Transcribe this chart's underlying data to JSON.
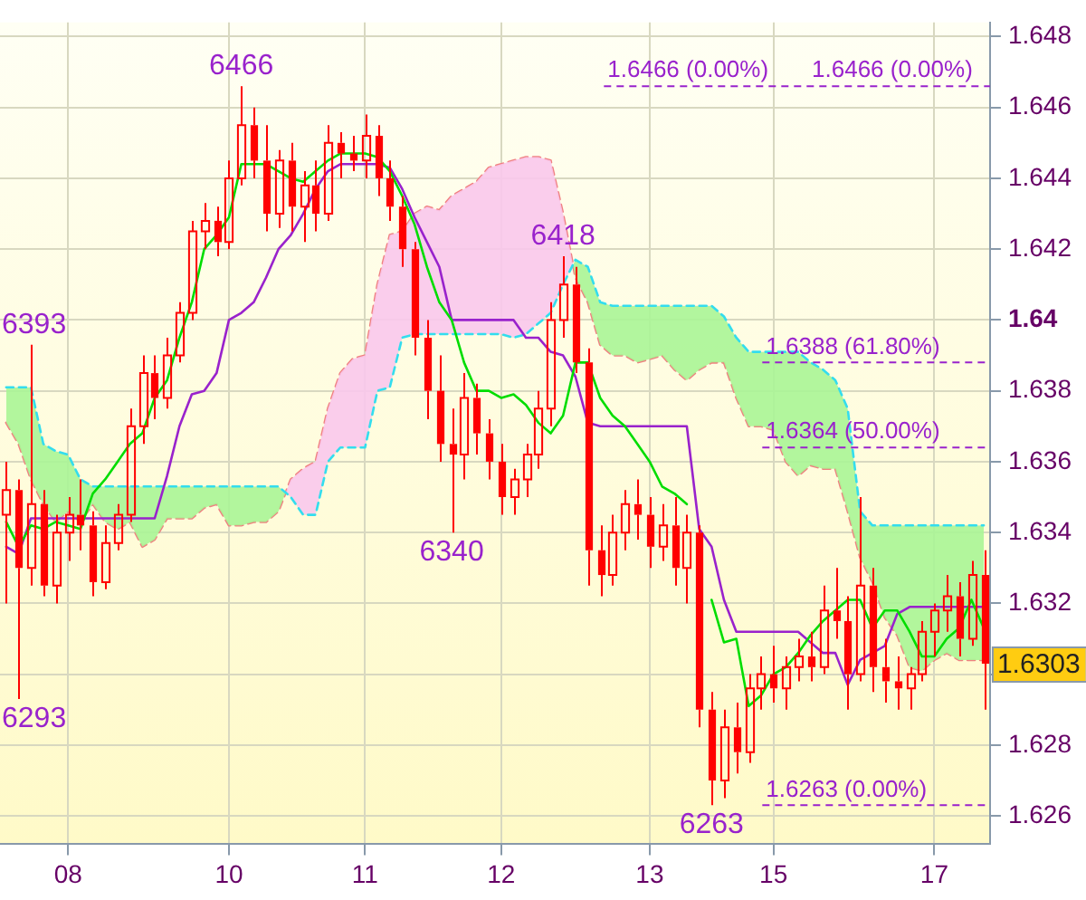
{
  "chart_data": {
    "type": "candlestick",
    "color": "#ff0000",
    "categories": [
      null,
      null,
      null,
      null,
      null,
      "08",
      null,
      null,
      null,
      null,
      null,
      null,
      null,
      null,
      null,
      null,
      null,
      null,
      "10",
      null,
      null,
      null,
      null,
      null,
      null,
      null,
      null,
      null,
      null,
      "11",
      null,
      null,
      null,
      null,
      null,
      null,
      null,
      null,
      null,
      null,
      "12",
      null,
      null,
      null,
      null,
      null,
      null,
      null,
      null,
      null,
      null,
      null,
      "13",
      null,
      null,
      null,
      null,
      null,
      null,
      null,
      null,
      null,
      "15",
      null,
      null,
      null,
      null,
      null,
      null,
      null,
      null,
      null,
      null,
      null,
      null,
      "17",
      null,
      null,
      null,
      null
    ],
    "ohlc": [
      [
        1.6345,
        1.636,
        1.632,
        1.6352
      ],
      [
        1.6352,
        1.6355,
        1.6293,
        1.633
      ],
      [
        1.633,
        1.6393,
        1.6325,
        1.6348
      ],
      [
        1.6348,
        1.6352,
        1.6322,
        1.6325
      ],
      [
        1.6325,
        1.6345,
        1.632,
        1.634
      ],
      [
        1.634,
        1.635,
        1.6332,
        1.6345
      ],
      [
        1.6345,
        1.6355,
        1.6335,
        1.6342
      ],
      [
        1.6342,
        1.6346,
        1.6322,
        1.6326
      ],
      [
        1.6326,
        1.6342,
        1.6324,
        1.6337
      ],
      [
        1.6337,
        1.6348,
        1.6335,
        1.6345
      ],
      [
        1.6345,
        1.6375,
        1.6343,
        1.637
      ],
      [
        1.637,
        1.639,
        1.6365,
        1.6385
      ],
      [
        1.6385,
        1.639,
        1.6372,
        1.6378
      ],
      [
        1.6378,
        1.6395,
        1.6375,
        1.639
      ],
      [
        1.639,
        1.6405,
        1.6388,
        1.6402
      ],
      [
        1.6402,
        1.6428,
        1.64,
        1.6425
      ],
      [
        1.6425,
        1.6433,
        1.642,
        1.6428
      ],
      [
        1.6428,
        1.6432,
        1.6418,
        1.6422
      ],
      [
        1.6422,
        1.6445,
        1.642,
        1.644
      ],
      [
        1.644,
        1.6466,
        1.6438,
        1.6455
      ],
      [
        1.6455,
        1.646,
        1.644,
        1.6445
      ],
      [
        1.6445,
        1.6455,
        1.6425,
        1.643
      ],
      [
        1.643,
        1.6448,
        1.6426,
        1.6445
      ],
      [
        1.6445,
        1.645,
        1.6425,
        1.6432
      ],
      [
        1.6432,
        1.6442,
        1.6422,
        1.6438
      ],
      [
        1.6438,
        1.6445,
        1.6425,
        1.643
      ],
      [
        1.643,
        1.6455,
        1.6428,
        1.645
      ],
      [
        1.645,
        1.6453,
        1.644,
        1.6447
      ],
      [
        1.6447,
        1.6452,
        1.6442,
        1.6445
      ],
      [
        1.6445,
        1.6458,
        1.644,
        1.6452
      ],
      [
        1.6452,
        1.6455,
        1.6435,
        1.644
      ],
      [
        1.644,
        1.6445,
        1.6428,
        1.6432
      ],
      [
        1.6432,
        1.6435,
        1.6415,
        1.642
      ],
      [
        1.642,
        1.6422,
        1.639,
        1.6395
      ],
      [
        1.6395,
        1.64,
        1.6372,
        1.638
      ],
      [
        1.638,
        1.639,
        1.636,
        1.6365
      ],
      [
        1.6365,
        1.6375,
        1.634,
        1.6362
      ],
      [
        1.6362,
        1.6385,
        1.6355,
        1.6378
      ],
      [
        1.6378,
        1.6382,
        1.6362,
        1.6368
      ],
      [
        1.6368,
        1.6372,
        1.6355,
        1.636
      ],
      [
        1.636,
        1.6365,
        1.6345,
        1.635
      ],
      [
        1.635,
        1.6358,
        1.6345,
        1.6355
      ],
      [
        1.6355,
        1.6365,
        1.635,
        1.6362
      ],
      [
        1.6362,
        1.638,
        1.6358,
        1.6375
      ],
      [
        1.6375,
        1.6405,
        1.637,
        1.64
      ],
      [
        1.64,
        1.6418,
        1.6395,
        1.641
      ],
      [
        1.641,
        1.6415,
        1.6385,
        1.6388
      ],
      [
        1.6388,
        1.6392,
        1.6325,
        1.6335
      ],
      [
        1.6335,
        1.6342,
        1.6322,
        1.6328
      ],
      [
        1.6328,
        1.6345,
        1.6325,
        1.634
      ],
      [
        1.634,
        1.6352,
        1.6335,
        1.6348
      ],
      [
        1.6348,
        1.6355,
        1.6338,
        1.6345
      ],
      [
        1.6345,
        1.635,
        1.633,
        1.6336
      ],
      [
        1.6336,
        1.6348,
        1.6332,
        1.6342
      ],
      [
        1.6342,
        1.635,
        1.6325,
        1.633
      ],
      [
        1.633,
        1.6345,
        1.632,
        1.634
      ],
      [
        1.634,
        1.6342,
        1.6285,
        1.629
      ],
      [
        1.629,
        1.6295,
        1.6263,
        1.627
      ],
      [
        1.627,
        1.629,
        1.6265,
        1.6285
      ],
      [
        1.6285,
        1.6292,
        1.6272,
        1.6278
      ],
      [
        1.6278,
        1.63,
        1.6275,
        1.6296
      ],
      [
        1.6296,
        1.6305,
        1.629,
        1.63
      ],
      [
        1.63,
        1.6308,
        1.6292,
        1.6296
      ],
      [
        1.6296,
        1.6305,
        1.629,
        1.6302
      ],
      [
        1.6302,
        1.631,
        1.6298,
        1.6305
      ],
      [
        1.6305,
        1.6312,
        1.6298,
        1.6302
      ],
      [
        1.6302,
        1.6325,
        1.63,
        1.6318
      ],
      [
        1.6318,
        1.633,
        1.631,
        1.6315
      ],
      [
        1.6315,
        1.6322,
        1.629,
        1.63
      ],
      [
        1.63,
        1.635,
        1.6298,
        1.6325
      ],
      [
        1.6325,
        1.633,
        1.6295,
        1.6302
      ],
      [
        1.6302,
        1.631,
        1.6292,
        1.6298
      ],
      [
        1.6298,
        1.6305,
        1.629,
        1.6296
      ],
      [
        1.6296,
        1.6302,
        1.629,
        1.63
      ],
      [
        1.63,
        1.6315,
        1.6298,
        1.6312
      ],
      [
        1.6312,
        1.632,
        1.6305,
        1.6318
      ],
      [
        1.6318,
        1.6328,
        1.6312,
        1.6322
      ],
      [
        1.6322,
        1.6326,
        1.6305,
        1.631
      ],
      [
        1.631,
        1.6332,
        1.6308,
        1.6328
      ],
      [
        1.6328,
        1.6335,
        1.629,
        1.6303
      ]
    ],
    "series": [
      {
        "type": "line",
        "color": "#00dd00",
        "values": [
          1.6343,
          1.6336,
          1.6342,
          1.6341,
          1.6343,
          1.6342,
          1.6341,
          1.6351,
          1.6355,
          1.636,
          1.6365,
          1.6368,
          1.6378,
          1.6383,
          1.6395,
          1.6405,
          1.642,
          1.6424,
          1.6429,
          1.6444,
          1.6444,
          1.6444,
          1.6442,
          1.644,
          1.6439,
          1.6442,
          1.6445,
          1.6447,
          1.6447,
          1.6447,
          1.6446,
          1.6442,
          1.6435,
          1.6427,
          1.6415,
          1.6405,
          1.64,
          1.6388,
          1.638,
          1.638,
          1.6378,
          1.6379,
          1.6376,
          1.6371,
          1.6368,
          1.6373,
          1.6388,
          1.6388,
          1.6378,
          1.6373,
          1.637,
          1.6365,
          1.636,
          1.6353,
          1.6351,
          1.6348,
          null,
          1.6321,
          1.6309,
          1.631,
          1.6291,
          1.6294,
          1.63,
          1.6302,
          1.6306,
          1.6311,
          1.6315,
          1.6318,
          1.6321,
          1.6321,
          1.6313,
          1.6318,
          1.6318,
          1.6312,
          1.6305,
          1.6305,
          1.631,
          1.6313,
          1.6321,
          1.6313
        ]
      },
      {
        "type": "line",
        "color": "#9922cc",
        "values": [
          1.6336,
          1.6334,
          1.6344,
          1.6344,
          1.6344,
          1.6344,
          1.6344,
          1.6344,
          1.6344,
          1.6344,
          1.6344,
          1.6344,
          1.6344,
          1.6356,
          1.637,
          1.6379,
          1.638,
          1.6385,
          1.64,
          1.6402,
          1.6405,
          1.6412,
          1.642,
          1.6424,
          1.643,
          1.6437,
          1.6442,
          1.6444,
          1.6444,
          1.6444,
          1.6444,
          1.6443,
          1.6437,
          1.6429,
          1.6422,
          1.6415,
          1.64,
          1.64,
          1.64,
          1.64,
          1.64,
          1.64,
          1.6395,
          1.6395,
          1.6391,
          1.639,
          1.6384,
          1.6371,
          1.637,
          1.637,
          1.637,
          1.637,
          1.637,
          1.637,
          1.637,
          1.637,
          1.6341,
          1.6336,
          1.6321,
          1.6312,
          1.6312,
          1.6312,
          1.6312,
          1.6312,
          1.6312,
          1.6309,
          1.6306,
          1.6306,
          1.6297,
          1.6304,
          1.6306,
          1.6308,
          1.6317,
          1.6319,
          1.6319,
          1.6319,
          1.6319,
          1.6319,
          1.6319,
          1.6319
        ]
      },
      {
        "type": "line",
        "color": "#33ddee",
        "line_style": "dashed",
        "values": [
          1.6381,
          1.6381,
          1.6381,
          1.6365,
          1.6363,
          1.6362,
          1.6355,
          1.6353,
          1.6353,
          1.6353,
          1.6353,
          1.6353,
          1.6353,
          1.6353,
          1.6353,
          1.6353,
          1.6353,
          1.6353,
          1.6353,
          1.6353,
          1.6353,
          1.6353,
          1.6353,
          1.635,
          1.6345,
          1.6345,
          1.636,
          1.6364,
          1.6364,
          1.6364,
          1.638,
          1.6381,
          1.6395,
          1.6396,
          1.6396,
          1.6396,
          1.6396,
          1.6396,
          1.6396,
          1.6396,
          1.6396,
          1.6395,
          1.6396,
          1.6399,
          1.6402,
          1.641,
          1.6417,
          1.6415,
          1.6405,
          1.6404,
          1.6404,
          1.6404,
          1.6404,
          1.6404,
          1.6404,
          1.6404,
          1.6404,
          1.6404,
          1.6401,
          1.6395,
          1.6391,
          1.6391,
          1.6391,
          1.6391,
          1.6391,
          1.6388,
          1.6386,
          1.6383,
          1.6375,
          1.6346,
          1.6342,
          1.6342,
          1.6342,
          1.6342,
          1.6342,
          1.6342,
          1.6342,
          1.6342,
          1.6342,
          1.6342
        ]
      },
      {
        "type": "line",
        "color": "#f08080",
        "line_style": "dashed",
        "lower": [
          1.6381,
          1.6381,
          1.6381,
          1.6365,
          1.6363,
          1.6362,
          1.6355,
          1.6353,
          1.6353,
          1.6353,
          1.6353,
          1.6353,
          1.6353,
          1.6353,
          1.6353,
          1.6353,
          1.6353,
          1.6353,
          1.6353,
          1.6353,
          1.6353,
          1.6353,
          1.6353,
          1.635,
          1.6345,
          1.6345,
          1.636,
          1.6364,
          1.6364,
          1.6364,
          1.638,
          1.6381,
          1.6395,
          1.6396,
          1.6396,
          1.6396,
          1.6396,
          1.6396,
          1.6396,
          1.6396,
          1.6396,
          1.6395,
          1.6396,
          1.6399,
          1.6402,
          1.641,
          1.6417,
          1.6415,
          1.6405,
          1.6404,
          1.6404,
          1.6404,
          1.6404,
          1.6404,
          1.6404,
          1.6404,
          1.6404,
          1.6404,
          1.6401,
          1.6395,
          1.6391,
          1.6391,
          1.6391,
          1.6391,
          1.6391,
          1.6388,
          1.6386,
          1.6383,
          1.6375,
          1.6346,
          1.6342,
          1.6342,
          1.6342,
          1.6342,
          1.6342,
          1.6342,
          1.6342,
          1.6342,
          1.6342,
          1.6342
        ],
        "upper": [
          1.6371,
          1.6365,
          1.6355,
          1.6348,
          1.6343,
          1.6346,
          1.6343,
          1.6348,
          1.6343,
          1.6341,
          1.6343,
          1.6336,
          1.6338,
          1.6344,
          1.6344,
          1.6344,
          1.6347,
          1.6348,
          1.6342,
          1.6342,
          1.6343,
          1.6343,
          1.6346,
          1.6355,
          1.6358,
          1.636,
          1.6375,
          1.6385,
          1.6389,
          1.639,
          1.641,
          1.6424,
          1.6425,
          1.643,
          1.6432,
          1.6431,
          1.6435,
          1.6437,
          1.6439,
          1.6443,
          1.6444,
          1.6445,
          1.6446,
          1.6446,
          1.6445,
          1.643,
          1.6412,
          1.6405,
          1.6393,
          1.639,
          1.639,
          1.6388,
          1.6389,
          1.639,
          1.6386,
          1.6383,
          1.6386,
          1.6388,
          1.6388,
          1.6378,
          1.637,
          1.637,
          1.6369,
          1.636,
          1.6356,
          1.6359,
          1.6358,
          1.6358,
          1.6346,
          1.6333,
          1.6326,
          1.6316,
          1.6311,
          1.6302,
          1.6301,
          1.6304,
          1.6306,
          1.6304,
          1.6304,
          1.6304
        ],
        "values": [
          1.6371,
          1.6365,
          1.6355,
          1.6348,
          1.6343,
          1.6346,
          1.6343,
          1.6348,
          1.6343,
          1.6341,
          1.6343,
          1.6336,
          1.6338,
          1.6344,
          1.6344,
          1.6344,
          1.6347,
          1.6348,
          1.6342,
          1.6342,
          1.6343,
          1.6343,
          1.6346,
          1.6355,
          1.6358,
          1.636,
          1.6375,
          1.6385,
          1.6389,
          1.639,
          1.641,
          1.6424,
          1.6425,
          1.643,
          1.6432,
          1.6431,
          1.6435,
          1.6437,
          1.6439,
          1.6443,
          1.6444,
          1.6445,
          1.6446,
          1.6446,
          1.6445,
          1.643,
          1.6412,
          1.6405,
          1.6393,
          1.639,
          1.639,
          1.6388,
          1.6389,
          1.639,
          1.6386,
          1.6383,
          1.6386,
          1.6388,
          1.6388,
          1.6378,
          1.637,
          1.637,
          1.6369,
          1.636,
          1.6356,
          1.6359,
          1.6358,
          1.6358,
          1.6346,
          1.6333,
          1.6326,
          1.6316,
          1.6311,
          1.6302,
          1.6301,
          1.6304,
          1.6306,
          1.6304,
          1.6304,
          1.6304
        ]
      }
    ],
    "ylim": [
      1.6252,
      1.6484
    ],
    "yticks": [
      1.626,
      1.628,
      {
        "value": 1.63,
        "label": null
      },
      1.632,
      1.634,
      1.636,
      1.638,
      1.64,
      1.642,
      1.644,
      1.646,
      1.648
    ],
    "grid": true,
    "legend": false,
    "ref_lines": [
      {
        "axis": "y",
        "value": 1.6466,
        "label": "1.6466 (0.00%)",
        "color": "#9922cc",
        "line_style": "dashed"
      },
      {
        "axis": "y",
        "value": 1.6388,
        "label": "1.6388 (61.80%)",
        "color": "#9922cc",
        "line_style": "dashed"
      },
      {
        "axis": "y",
        "value": 1.6364,
        "label": "1.6364 (50.00%)",
        "color": "#9922cc",
        "line_style": "dashed"
      },
      {
        "axis": "y",
        "value": 1.6263,
        "label": "1.6263 (0.00%)",
        "color": "#9922cc",
        "line_style": "dashed"
      }
    ],
    "annotations": [
      {
        "text": "6466",
        "y": 1.6466
      },
      {
        "text": "6418",
        "y": 1.6418
      },
      {
        "text": "6393",
        "y": 1.6393
      },
      {
        "text": "6340",
        "y": 1.634
      },
      "6293",
      {
        "text": "6263",
        "y": 1.6263
      },
      "1.6303",
      "1.6466 (0.00%)"
    ]
  }
}
